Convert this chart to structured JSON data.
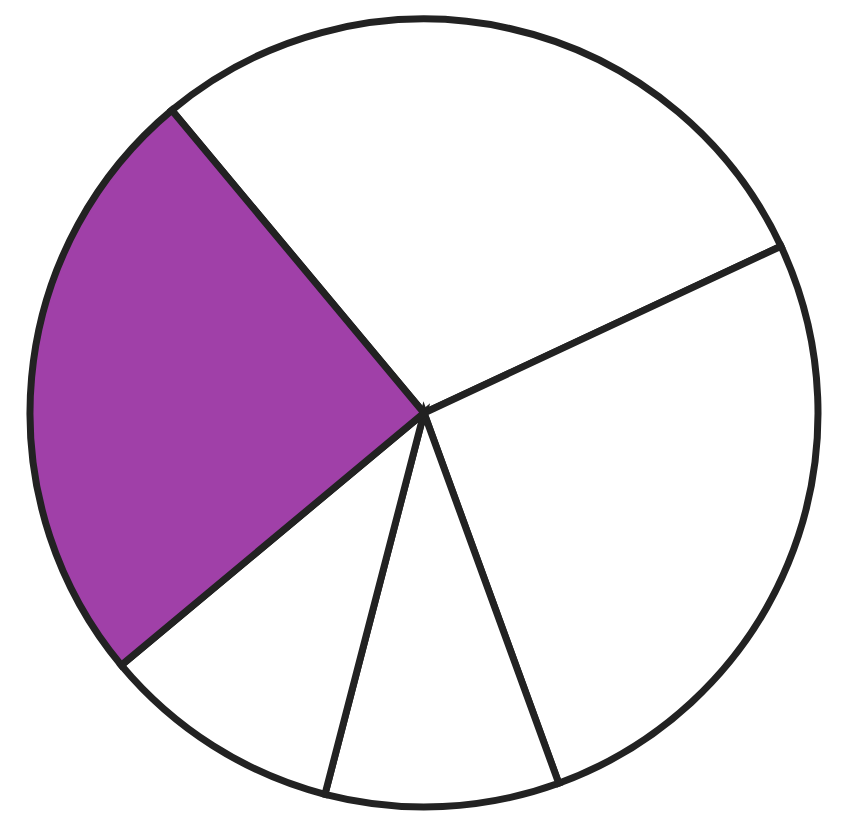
{
  "chart_data": {
    "type": "pie",
    "categories": [
      null,
      null,
      null,
      null,
      null
    ],
    "values": [
      29.1,
      26.4,
      9.6,
      9.9,
      25.0
    ],
    "colors": [
      "#ffffff",
      "#ffffff",
      "#ffffff",
      "#ffffff",
      "#a040a8"
    ],
    "legend": false
  }
}
